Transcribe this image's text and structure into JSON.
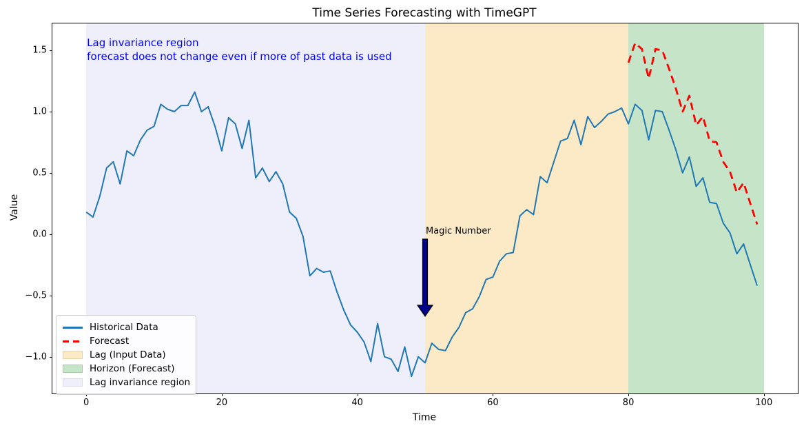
{
  "chart_data": {
    "type": "line",
    "title": "Time Series Forecasting with TimeGPT",
    "xlabel": "Time",
    "ylabel": "Value",
    "xlim": [
      -5,
      105
    ],
    "ylim": [
      -1.3,
      1.72
    ],
    "grid": false,
    "legend_position": "lower left",
    "x_ticks": [
      {
        "v": 0,
        "label": "0"
      },
      {
        "v": 20,
        "label": "20"
      },
      {
        "v": 40,
        "label": "40"
      },
      {
        "v": 60,
        "label": "60"
      },
      {
        "v": 80,
        "label": "80"
      },
      {
        "v": 100,
        "label": "100"
      }
    ],
    "y_ticks": [
      {
        "v": 1.5,
        "label": "1.5"
      },
      {
        "v": 1.0,
        "label": "1.0"
      },
      {
        "v": 0.5,
        "label": "0.5"
      },
      {
        "v": 0.0,
        "label": "0.0"
      },
      {
        "v": -0.5,
        "label": "−0.5"
      },
      {
        "v": -1.0,
        "label": "−1.0"
      }
    ],
    "series": [
      {
        "name": "Historical Data",
        "color": "#1f77b4",
        "style": "solid",
        "line_width": 2,
        "x_start": 0,
        "x_step": 1,
        "values": [
          0.18,
          0.14,
          0.31,
          0.54,
          0.59,
          0.41,
          0.68,
          0.64,
          0.77,
          0.85,
          0.88,
          1.06,
          1.02,
          1.0,
          1.05,
          1.05,
          1.16,
          1.0,
          1.04,
          0.88,
          0.68,
          0.95,
          0.9,
          0.7,
          0.93,
          0.46,
          0.54,
          0.43,
          0.51,
          0.41,
          0.18,
          0.13,
          -0.02,
          -0.34,
          -0.28,
          -0.31,
          -0.3,
          -0.47,
          -0.62,
          -0.74,
          -0.8,
          -0.88,
          -1.04,
          -0.73,
          -1.0,
          -1.02,
          -1.12,
          -0.92,
          -1.16,
          -1.0,
          -1.05,
          -0.89,
          -0.94,
          -0.95,
          -0.84,
          -0.76,
          -0.64,
          -0.61,
          -0.51,
          -0.37,
          -0.35,
          -0.22,
          -0.16,
          -0.15,
          0.15,
          0.2,
          0.16,
          0.47,
          0.42,
          0.59,
          0.76,
          0.78,
          0.93,
          0.73,
          0.96,
          0.87,
          0.92,
          0.98,
          1.0,
          1.03,
          0.9,
          1.06,
          1.01,
          0.77,
          1.01,
          1.0,
          0.85,
          0.69,
          0.5,
          0.63,
          0.39,
          0.46,
          0.26,
          0.25,
          0.09,
          0.01,
          -0.16,
          -0.08,
          -0.25,
          -0.42
        ]
      },
      {
        "name": "Forecast",
        "color": "#ff0000",
        "style": "dashed",
        "line_width": 2.8,
        "x_start": 80,
        "x_step": 1,
        "values": [
          1.4,
          1.56,
          1.51,
          1.27,
          1.51,
          1.5,
          1.35,
          1.19,
          1.0,
          1.13,
          0.89,
          0.96,
          0.76,
          0.75,
          0.59,
          0.51,
          0.34,
          0.42,
          0.25,
          0.08
        ]
      }
    ],
    "regions": [
      {
        "name": "lag-invariance-region",
        "label": "Lag invariance region",
        "x0": 0,
        "x1": 50,
        "color": "#efeffb"
      },
      {
        "name": "lag-input-region",
        "label": "Lag (Input Data)",
        "x0": 50,
        "x1": 80,
        "color": "#fce9c5"
      },
      {
        "name": "horizon-region",
        "label": "Horizon (Forecast)",
        "x0": 80,
        "x1": 100,
        "color": "#c6e5c8"
      }
    ],
    "annotations": [
      {
        "name": "lag-invariance-note",
        "text": "Lag invariance region\nforecast does not change even if more of past data is used",
        "x": 0,
        "y": 1.62,
        "color": "#0000ff"
      },
      {
        "name": "magic-number-note",
        "text": "Magic Number",
        "x": 50,
        "y": 0.07,
        "color": "#000000",
        "arrow": {
          "x": 50,
          "y_from": -0.04,
          "y_to": -0.67,
          "fill": "#00008b",
          "edge": "#000000"
        }
      }
    ]
  },
  "header": {
    "title": "Time Series Forecasting with TimeGPT"
  },
  "axis": {
    "xlabel": "Time",
    "ylabel": "Value"
  },
  "legend": {
    "items": [
      {
        "label": "Historical Data",
        "type": "line",
        "color": "#1f77b4"
      },
      {
        "label": "Forecast",
        "type": "dashed-line",
        "color": "#ff0000"
      },
      {
        "label": "Lag (Input Data)",
        "type": "patch",
        "color": "#fce9c5",
        "edge": "#e8d2a4"
      },
      {
        "label": "Horizon (Forecast)",
        "type": "patch",
        "color": "#c6e5c8",
        "edge": "#a3cda6"
      },
      {
        "label": "Lag invariance region",
        "type": "patch",
        "color": "#efeffb",
        "edge": "#dcdcf0"
      }
    ]
  }
}
